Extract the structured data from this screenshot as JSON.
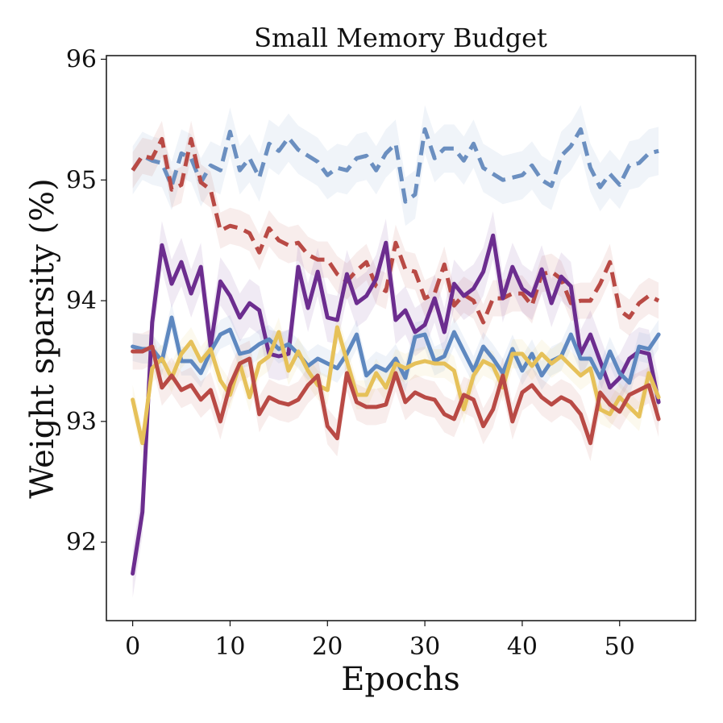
{
  "chart_data": {
    "type": "line",
    "title": "Small Memory Budget",
    "xlabel": "Epochs",
    "ylabel": "Weight sparsity (%)",
    "xlim": [
      -2.7,
      57.8
    ],
    "ylim": [
      91.35,
      96.03
    ],
    "xticks": [
      0,
      10,
      20,
      30,
      40,
      50
    ],
    "yticks": [
      92,
      93,
      94,
      95,
      96
    ],
    "grid": false,
    "series": [
      {
        "name": "blue dashed",
        "color": "#6b8fc0",
        "dashed": true,
        "band": 0.2,
        "values": [
          95.08,
          95.2,
          95.16,
          95.14,
          94.95,
          95.22,
          95.18,
          94.98,
          95.12,
          95.08,
          95.4,
          95.08,
          95.18,
          95.02,
          95.3,
          95.24,
          95.35,
          95.25,
          95.2,
          95.15,
          95.04,
          95.1,
          95.08,
          95.18,
          95.2,
          95.08,
          95.22,
          95.3,
          94.82,
          94.88,
          95.42,
          95.18,
          95.26,
          95.26,
          95.16,
          95.3,
          95.1,
          95.05,
          95.0,
          95.02,
          95.04,
          95.12,
          95.0,
          94.95,
          95.2,
          95.28,
          95.42,
          95.1,
          94.94,
          95.05,
          94.96,
          95.12,
          95.14,
          95.22,
          95.24
        ]
      },
      {
        "name": "red dashed",
        "color": "#b94a45",
        "dashed": true,
        "band": 0.15,
        "values": [
          95.08,
          95.2,
          95.18,
          95.34,
          94.92,
          94.96,
          95.34,
          94.98,
          94.92,
          94.58,
          94.62,
          94.6,
          94.56,
          94.4,
          94.6,
          94.5,
          94.46,
          94.48,
          94.38,
          94.34,
          94.34,
          94.22,
          94.16,
          94.25,
          94.32,
          94.12,
          94.08,
          94.48,
          94.26,
          94.24,
          94.02,
          94.06,
          94.3,
          93.96,
          94.05,
          94.0,
          93.82,
          94.02,
          94.02,
          94.06,
          94.06,
          93.96,
          94.22,
          94.24,
          94.18,
          93.98,
          94.0,
          94.0,
          94.14,
          94.32,
          93.92,
          93.86,
          93.98,
          94.04,
          94.0
        ]
      },
      {
        "name": "purple solid",
        "color": "#6c2d8f",
        "dashed": false,
        "band": 0.2,
        "values": [
          91.74,
          92.25,
          93.82,
          94.46,
          94.14,
          94.32,
          94.06,
          94.28,
          93.62,
          94.16,
          94.04,
          93.86,
          93.98,
          93.92,
          93.56,
          93.54,
          93.56,
          94.28,
          93.94,
          94.24,
          93.86,
          93.84,
          94.22,
          93.98,
          94.04,
          94.18,
          94.48,
          93.84,
          93.92,
          93.74,
          93.8,
          94.02,
          93.74,
          94.14,
          94.04,
          94.1,
          94.24,
          94.54,
          94.02,
          94.28,
          94.1,
          94.04,
          94.26,
          93.98,
          94.2,
          94.12,
          93.56,
          93.72,
          93.5,
          93.28,
          93.36,
          93.52,
          93.58,
          93.56,
          93.16
        ]
      },
      {
        "name": "blue solid",
        "color": "#5e88c0",
        "dashed": false,
        "band": 0.12,
        "values": [
          93.62,
          93.6,
          93.6,
          93.5,
          93.86,
          93.5,
          93.5,
          93.4,
          93.58,
          93.72,
          93.76,
          93.56,
          93.58,
          93.64,
          93.68,
          93.6,
          93.64,
          93.56,
          93.46,
          93.52,
          93.48,
          93.44,
          93.56,
          93.72,
          93.38,
          93.46,
          93.42,
          93.52,
          93.36,
          93.7,
          93.72,
          93.5,
          93.54,
          93.74,
          93.58,
          93.42,
          93.62,
          93.52,
          93.4,
          93.6,
          93.42,
          93.56,
          93.38,
          93.5,
          93.54,
          93.72,
          93.52,
          93.52,
          93.36,
          93.58,
          93.4,
          93.32,
          93.62,
          93.6,
          93.72
        ]
      },
      {
        "name": "yellow solid",
        "color": "#e6c159",
        "dashed": false,
        "band": 0.12,
        "values": [
          93.18,
          92.82,
          93.44,
          93.52,
          93.36,
          93.56,
          93.66,
          93.5,
          93.6,
          93.34,
          93.22,
          93.48,
          93.2,
          93.48,
          93.54,
          93.74,
          93.42,
          93.58,
          93.42,
          93.3,
          93.26,
          93.78,
          93.5,
          93.22,
          93.22,
          93.4,
          93.28,
          93.48,
          93.44,
          93.48,
          93.5,
          93.48,
          93.48,
          93.42,
          93.1,
          93.38,
          93.5,
          93.46,
          93.28,
          93.56,
          93.56,
          93.46,
          93.56,
          93.48,
          93.54,
          93.46,
          93.38,
          93.44,
          93.1,
          93.06,
          93.2,
          93.12,
          93.04,
          93.4,
          93.2
        ]
      },
      {
        "name": "red solid",
        "color": "#b94a45",
        "dashed": false,
        "band": 0.15,
        "values": [
          93.58,
          93.58,
          93.62,
          93.28,
          93.38,
          93.26,
          93.3,
          93.18,
          93.26,
          93.0,
          93.3,
          93.48,
          93.52,
          93.06,
          93.2,
          93.16,
          93.14,
          93.18,
          93.3,
          93.38,
          92.96,
          92.86,
          93.4,
          93.16,
          93.12,
          93.12,
          93.14,
          93.4,
          93.16,
          93.24,
          93.2,
          93.18,
          93.06,
          93.02,
          93.22,
          93.18,
          92.96,
          93.1,
          93.38,
          93.0,
          93.24,
          93.3,
          93.2,
          93.14,
          93.2,
          93.16,
          93.06,
          92.82,
          93.24,
          93.14,
          93.08,
          93.22,
          93.26,
          93.3,
          93.02
        ]
      }
    ]
  }
}
